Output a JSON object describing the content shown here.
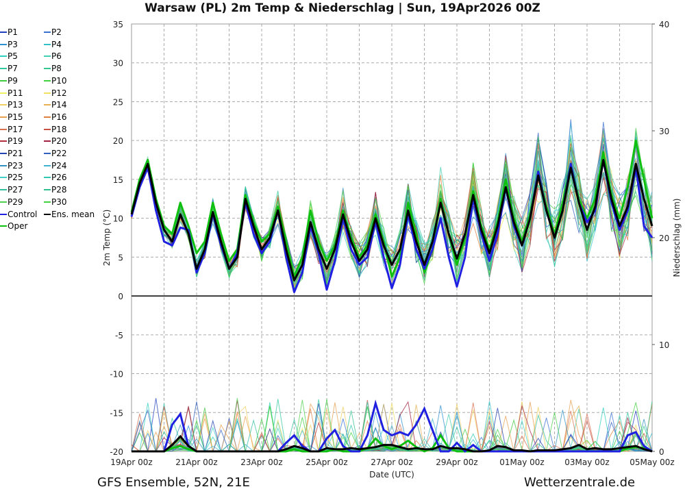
{
  "chart_data": {
    "type": "line",
    "title": "Warsaw  (PL)  2m Temp & Niederschlag | Sun, 19Apr2026 00Z",
    "xlabel": "Date (UTC)",
    "ylabel": "2m Temp (°C)",
    "y2label": "Niederschlag (mm)",
    "ylim": [
      -20,
      35
    ],
    "y2lim": [
      0,
      40
    ],
    "yticks": [
      "35",
      "30",
      "25",
      "20",
      "15",
      "10",
      "5",
      "0",
      "-5",
      "-10",
      "-15",
      "-20"
    ],
    "y2ticks": [
      "40",
      "30",
      "20",
      "10",
      "0"
    ],
    "xticks": [
      "19Apr 00z",
      "21Apr 00z",
      "23Apr 00z",
      "25Apr 00z",
      "27Apr 00z",
      "29Apr 00z",
      "01May 00z",
      "03May 00z",
      "05May 00z"
    ],
    "x_step": "6h",
    "grid": true,
    "legend_position": "left",
    "series": [
      {
        "name": "Ens. mean",
        "color": "#000000",
        "temp": [
          10.5,
          14.5,
          17,
          12,
          8.5,
          7,
          10.5,
          8,
          3.5,
          6,
          10.8,
          7,
          3.5,
          5,
          12.5,
          9,
          6,
          7.5,
          11,
          6,
          2,
          4,
          9.5,
          6,
          3.5,
          6,
          10.5,
          7,
          4.5,
          6,
          10,
          6.5,
          4,
          6,
          11,
          7,
          4,
          7,
          12,
          8,
          4.8,
          8,
          13,
          8.5,
          5.5,
          9,
          14,
          9.5,
          6.5,
          10,
          15.5,
          11,
          7.5,
          11,
          16.5,
          12,
          8.5,
          11.5,
          17.5,
          12.5,
          9,
          11.5,
          17,
          12.5,
          9
        ],
        "precip": [
          0,
          0,
          0,
          0,
          0,
          0.6,
          1.4,
          0.5,
          0,
          0,
          0,
          0,
          0,
          0,
          0,
          0,
          0,
          0,
          0,
          0.2,
          0.5,
          0.3,
          0,
          0,
          0.3,
          0.2,
          0.2,
          0.3,
          0.2,
          0.3,
          0.4,
          0.6,
          0.6,
          0.4,
          0.2,
          0.3,
          0.2,
          0.2,
          0.5,
          0.3,
          0.3,
          0.2,
          0,
          0,
          0.1,
          0.5,
          0.4,
          0.1,
          0.1,
          0,
          0.1,
          0.1,
          0.1,
          0.2,
          0.3,
          0.6,
          0.2,
          0.3,
          0.2,
          0.2,
          0.3,
          0.4,
          0.5,
          0.2,
          0
        ]
      },
      {
        "name": "Control",
        "color": "#2020e0",
        "temp": [
          10.2,
          14,
          16.5,
          11,
          7,
          6.5,
          8.8,
          8.5,
          3,
          5.5,
          10.5,
          6.5,
          3.5,
          5.5,
          12,
          8,
          5.5,
          7,
          11,
          5,
          0.5,
          3,
          9,
          5.5,
          0.8,
          4.5,
          10,
          6,
          4,
          5,
          9.5,
          5,
          1,
          4,
          10.5,
          6,
          3.5,
          6,
          10,
          5,
          1.2,
          5,
          12.5,
          8,
          4.5,
          8,
          14,
          9,
          6.5,
          10,
          16,
          11,
          7.5,
          11,
          17,
          12,
          9.5,
          11,
          17.5,
          12,
          8.5,
          11,
          16.5,
          9,
          7.5
        ],
        "precip": [
          0,
          0,
          0,
          0,
          0,
          2.5,
          3.5,
          0.5,
          0,
          0,
          0,
          0,
          0,
          0,
          0,
          0,
          0,
          0,
          0,
          0.8,
          1.5,
          0.5,
          0,
          0,
          1.2,
          2,
          0.5,
          0,
          0,
          1.5,
          4.5,
          2,
          1.5,
          1.8,
          1.5,
          2.5,
          4,
          2,
          0,
          0,
          0.8,
          0,
          0.6,
          0,
          0,
          0,
          0,
          0,
          0,
          0,
          0,
          0,
          0,
          0,
          0,
          0,
          0,
          0,
          0,
          0,
          0,
          1.5,
          1.8,
          0.5,
          0
        ]
      },
      {
        "name": "Oper",
        "color": "#10c010",
        "temp": [
          10.8,
          15,
          17.5,
          12.5,
          9,
          8,
          12,
          9,
          5.5,
          7,
          12,
          8,
          4.5,
          6,
          13,
          9.5,
          7,
          8,
          11.5,
          7,
          2.5,
          5,
          11,
          7,
          4.5,
          6.5,
          11,
          7.5,
          5,
          6.5,
          10.5,
          7,
          2.5,
          5,
          12,
          8,
          3,
          6,
          12.5,
          8,
          4,
          7.5,
          13.5,
          9,
          6,
          9.5,
          15,
          10,
          7,
          10.5,
          16,
          11.5,
          8,
          12,
          17,
          12.5,
          10,
          12.5,
          18.5,
          13,
          10,
          14,
          20,
          15,
          10
        ],
        "precip": [
          0,
          0,
          0,
          0,
          0,
          0.3,
          0.5,
          0.2,
          0,
          0,
          0,
          0,
          0,
          0,
          0,
          0,
          0,
          0,
          0,
          0,
          0.2,
          0,
          0,
          0,
          0,
          0.2,
          0,
          0,
          0,
          0.3,
          1.2,
          0.5,
          0.2,
          0.5,
          1,
          0.4,
          0,
          0.3,
          1.5,
          0.3,
          0,
          0,
          0,
          0,
          0,
          0,
          0,
          0,
          0,
          0,
          0,
          0,
          0,
          0,
          0,
          0,
          0,
          0,
          0,
          0,
          0,
          0.3,
          0.4,
          0.3,
          0
        ]
      }
    ]
  },
  "legend": [
    {
      "label": "P1",
      "color": "#1f3fbf"
    },
    {
      "label": "P2",
      "color": "#3a6fd0"
    },
    {
      "label": "P3",
      "color": "#2c8fd0"
    },
    {
      "label": "P4",
      "color": "#30c0c8"
    },
    {
      "label": "P5",
      "color": "#30d0c0"
    },
    {
      "label": "P6",
      "color": "#40d0b0"
    },
    {
      "label": "P7",
      "color": "#30c8a0"
    },
    {
      "label": "P8",
      "color": "#30c890"
    },
    {
      "label": "P9",
      "color": "#40c840"
    },
    {
      "label": "P10",
      "color": "#40d040"
    },
    {
      "label": "P11",
      "color": "#f0f060"
    },
    {
      "label": "P12",
      "color": "#f0e060"
    },
    {
      "label": "P13",
      "color": "#f0d060"
    },
    {
      "label": "P14",
      "color": "#e8b050"
    },
    {
      "label": "P15",
      "color": "#e8a050"
    },
    {
      "label": "P16",
      "color": "#e08040"
    },
    {
      "label": "P17",
      "color": "#d87050"
    },
    {
      "label": "P18",
      "color": "#c85040"
    },
    {
      "label": "P19",
      "color": "#b03040"
    },
    {
      "label": "P20",
      "color": "#a02040"
    },
    {
      "label": "P21",
      "color": "#2040b0"
    },
    {
      "label": "P22",
      "color": "#3060c0"
    },
    {
      "label": "P23",
      "color": "#3090c0"
    },
    {
      "label": "P24",
      "color": "#40b0d0"
    },
    {
      "label": "P25",
      "color": "#40d0c8"
    },
    {
      "label": "P26",
      "color": "#30c8b0"
    },
    {
      "label": "P27",
      "color": "#30c0a0"
    },
    {
      "label": "P28",
      "color": "#30c090"
    },
    {
      "label": "P29",
      "color": "#50d050"
    },
    {
      "label": "P30",
      "color": "#40d040"
    },
    {
      "label": "Control",
      "color": "#2020e0"
    },
    {
      "label": "Ens. mean",
      "color": "#000000"
    },
    {
      "label": "Oper",
      "color": "#10c010"
    }
  ],
  "footer": {
    "left": "GFS Ensemble, 52N, 21E",
    "right": "Wetterzentrale.de"
  }
}
